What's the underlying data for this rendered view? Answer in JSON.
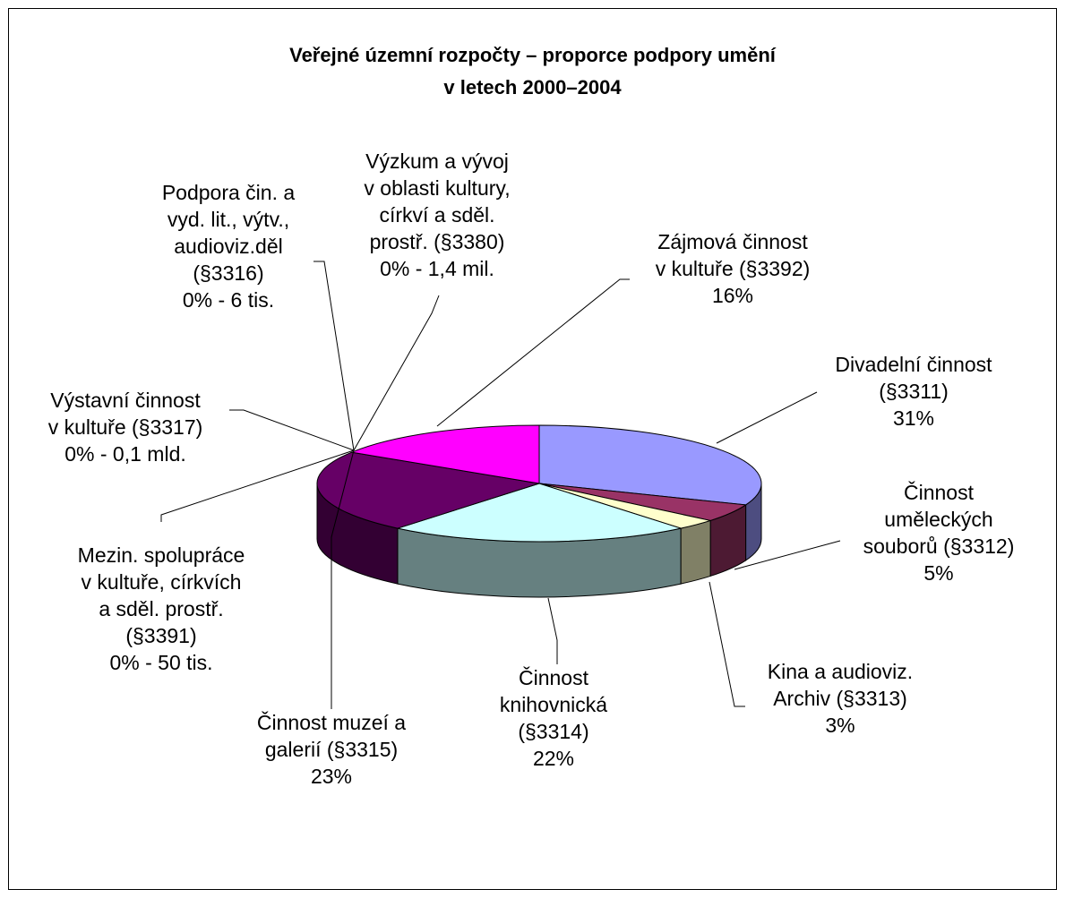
{
  "chart_data": {
    "type": "pie3d",
    "title": "Veřejné územní rozpočty – proporce podpory umění\nv letech 2000–2004",
    "categories": [
      "Divadelní činnost\n(§3311)",
      "Činnost\numěleckých\nsouborů (§3312)",
      "Kina a audioviz.\nArchiv (§3313)",
      "Činnost\nknihovnická\n(§3314)",
      "Činnost muzeí a\ngalerií (§3315)",
      "Mezin. spolupráce\nv kultuře, církvích\na sděl. prostř.\n(§3391)",
      "Výstavní činnost\nv kultuře (§3317)",
      "Podpora čin. a\nvyd. lit., výtv.,\naudioviz.děl\n(§3316)",
      "Výzkum a vývoj\nv oblasti kultury,\ncírkví a sděl.\nprostř. (§3380)",
      "Zájmová činnost\nv kultuře (§3392)"
    ],
    "values": [
      31,
      5,
      3,
      22,
      23,
      0,
      0,
      0,
      0,
      16
    ],
    "value_labels": [
      "31%",
      "5%",
      "3%",
      "22%",
      "23%",
      "0% - 50 tis.",
      "0% - 0,1 mld.",
      "0% - 6 tis.",
      "0% - 1,4 mil.",
      "16%"
    ],
    "colors": [
      "#9999ff",
      "#993366",
      "#ffffcc",
      "#ccffff",
      "#660066",
      "#0066cc",
      "#ff8080",
      "#000080",
      "#00ccff",
      "#ff00ff"
    ]
  }
}
